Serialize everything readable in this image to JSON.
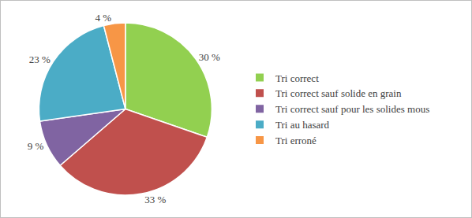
{
  "chart_data": {
    "type": "pie",
    "categories": [
      "Tri correct",
      "Tri correct sauf solide en grain",
      "Tri correct sauf pour les solides mous",
      "Tri au hasard",
      "Tri erroné"
    ],
    "values": [
      30,
      33,
      9,
      23,
      4
    ],
    "value_labels": [
      "30 %",
      "33 %",
      "9 %",
      "23 %",
      "4 %"
    ],
    "colors": [
      "#92d050",
      "#c0504d",
      "#8064a2",
      "#4bacc6",
      "#f79646"
    ],
    "data_labels": true,
    "legend": "right"
  }
}
